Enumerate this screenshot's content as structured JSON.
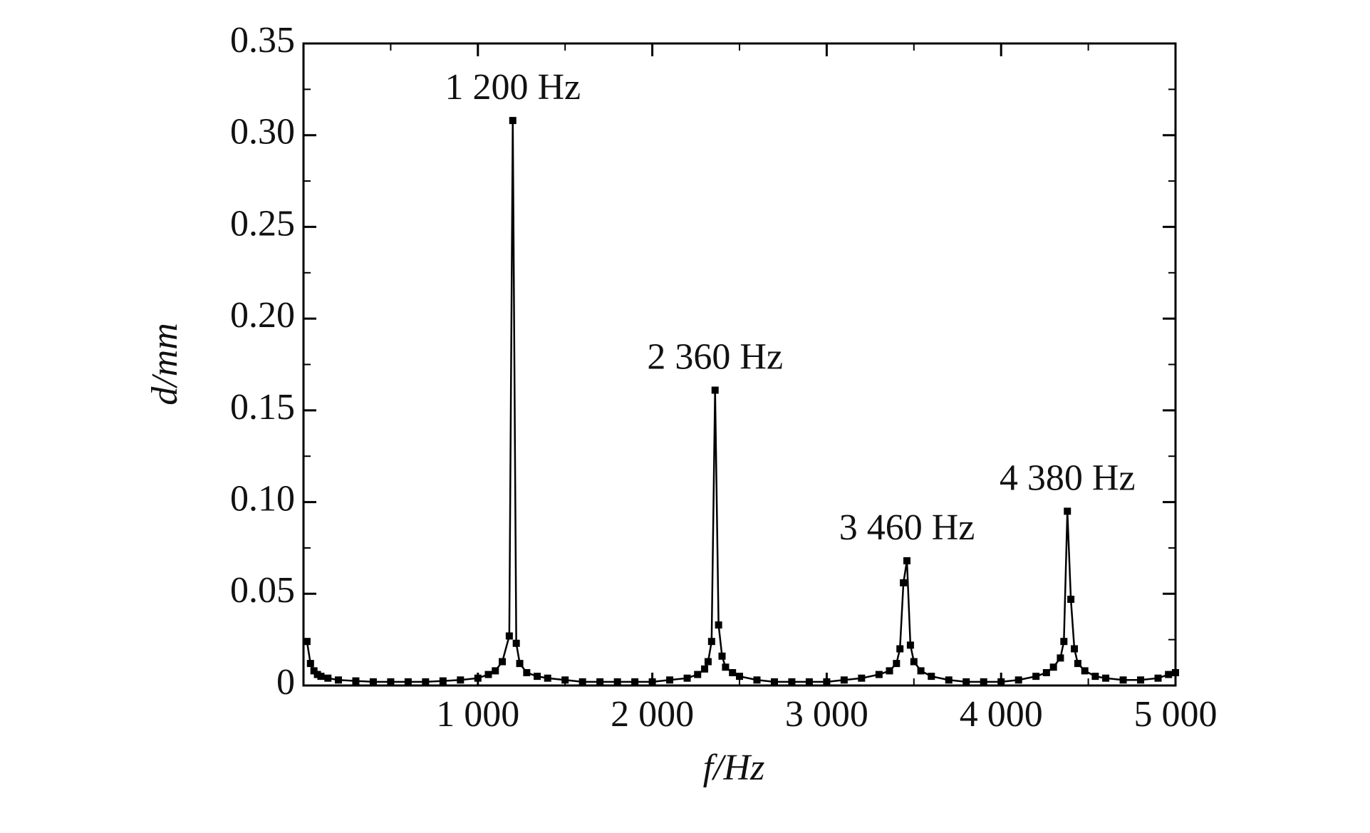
{
  "chart_data": {
    "type": "line",
    "xlabel": "f/Hz",
    "ylabel": "d/mm",
    "x": [
      20,
      40,
      60,
      80,
      100,
      140,
      200,
      300,
      400,
      500,
      600,
      700,
      800,
      900,
      1000,
      1060,
      1100,
      1140,
      1180,
      1200,
      1220,
      1240,
      1280,
      1340,
      1400,
      1500,
      1600,
      1700,
      1800,
      1900,
      2000,
      2100,
      2200,
      2260,
      2300,
      2320,
      2340,
      2360,
      2380,
      2400,
      2420,
      2460,
      2500,
      2600,
      2700,
      2800,
      2900,
      3000,
      3100,
      3200,
      3300,
      3360,
      3400,
      3420,
      3440,
      3460,
      3480,
      3500,
      3540,
      3600,
      3700,
      3800,
      3900,
      4000,
      4100,
      4200,
      4260,
      4300,
      4340,
      4360,
      4380,
      4400,
      4420,
      4440,
      4480,
      4540,
      4600,
      4700,
      4800,
      4900,
      4960,
      5000
    ],
    "series": [
      {
        "color": "#000000",
        "values": [
          0.024,
          0.012,
          0.008,
          0.006,
          0.005,
          0.004,
          0.003,
          0.0025,
          0.002,
          0.002,
          0.002,
          0.002,
          0.0025,
          0.003,
          0.004,
          0.006,
          0.008,
          0.013,
          0.027,
          0.308,
          0.023,
          0.012,
          0.007,
          0.005,
          0.004,
          0.003,
          0.002,
          0.002,
          0.002,
          0.002,
          0.002,
          0.003,
          0.004,
          0.006,
          0.009,
          0.013,
          0.024,
          0.161,
          0.033,
          0.016,
          0.01,
          0.007,
          0.005,
          0.003,
          0.002,
          0.002,
          0.002,
          0.002,
          0.003,
          0.004,
          0.006,
          0.008,
          0.012,
          0.02,
          0.056,
          0.068,
          0.022,
          0.013,
          0.008,
          0.005,
          0.003,
          0.002,
          0.002,
          0.002,
          0.003,
          0.005,
          0.007,
          0.01,
          0.015,
          0.024,
          0.095,
          0.047,
          0.02,
          0.012,
          0.008,
          0.005,
          0.004,
          0.003,
          0.003,
          0.004,
          0.006,
          0.007
        ]
      }
    ],
    "xlim": [
      0,
      5000
    ],
    "xticks": [
      {
        "value": 1000,
        "label": "1 000"
      },
      {
        "value": 2000,
        "label": "2 000"
      },
      {
        "value": 3000,
        "label": "3 000"
      },
      {
        "value": 4000,
        "label": "4 000"
      },
      {
        "value": 5000,
        "label": "5 000"
      }
    ],
    "xticks_minor": [
      500,
      1500,
      2500,
      3500,
      4500
    ],
    "ylim": [
      0,
      0.35
    ],
    "yticks": [
      0,
      0.05,
      {
        "value": 0.1,
        "label": "0.10"
      },
      0.15,
      {
        "value": 0.2,
        "label": "0.20"
      },
      0.25,
      {
        "value": 0.3,
        "label": "0.30"
      },
      0.35
    ],
    "yticks_minor": [
      0.025,
      0.075,
      0.125,
      0.175,
      0.225,
      0.275,
      0.325
    ],
    "annotations": [
      {
        "text": "1 200 Hz",
        "x": 1200,
        "y": 0.308
      },
      {
        "text": "2 360 Hz",
        "x": 2360,
        "y": 0.161
      },
      {
        "text": "3 460 Hz",
        "x": 3460,
        "y": 0.068
      },
      {
        "text": "4 380 Hz",
        "x": 4380,
        "y": 0.095
      }
    ],
    "grid": false
  }
}
